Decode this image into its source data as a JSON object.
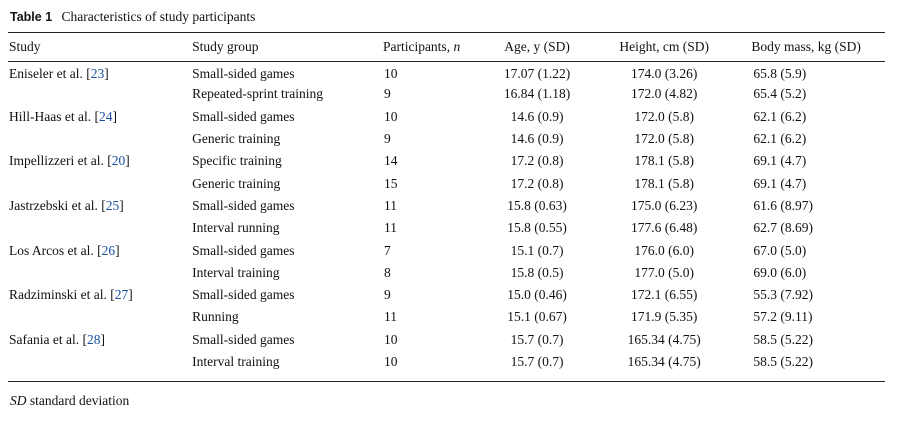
{
  "table": {
    "label": "Table 1",
    "caption": "Characteristics of study participants",
    "headers": {
      "study": "Study",
      "group": "Study group",
      "participants": "Participants, ",
      "participants_var": "n",
      "age": "Age, y (SD)",
      "height": "Height, cm (SD)",
      "mass": "Body mass, kg (SD)"
    },
    "rows": [
      {
        "study": "Eniseler et al. [",
        "ref": "23",
        "study_end": "]",
        "group": "Small-sided games",
        "n": "10",
        "age": "17.07 (1.22)",
        "height": "174.0 (3.26)",
        "mass": "65.8 (5.9)"
      },
      {
        "study": "",
        "ref": "",
        "study_end": "",
        "group": "Repeated-sprint training",
        "n": "9",
        "age": "16.84 (1.18)",
        "height": "172.0 (4.82)",
        "mass": "65.4 (5.2)"
      },
      {
        "study": "Hill-Haas et al. [",
        "ref": "24",
        "study_end": "]",
        "group": "Small-sided games",
        "n": "10",
        "age": "14.6 (0.9)",
        "height": "172.0 (5.8)",
        "mass": "62.1 (6.2)"
      },
      {
        "study": "",
        "ref": "",
        "study_end": "",
        "group": "Generic training",
        "n": "9",
        "age": "14.6 (0.9)",
        "height": "172.0 (5.8)",
        "mass": "62.1 (6.2)"
      },
      {
        "study": "Impellizzeri et al. [",
        "ref": "20",
        "study_end": "]",
        "group": "Specific training",
        "n": "14",
        "age": "17.2 (0.8)",
        "height": "178.1 (5.8)",
        "mass": "69.1 (4.7)"
      },
      {
        "study": "",
        "ref": "",
        "study_end": "",
        "group": "Generic training",
        "n": "15",
        "age": "17.2 (0.8)",
        "height": "178.1 (5.8)",
        "mass": "69.1 (4.7)"
      },
      {
        "study": "Jastrzebski et al. [",
        "ref": "25",
        "study_end": "]",
        "group": "Small-sided games",
        "n": "11",
        "age": "15.8 (0.63)",
        "height": "175.0 (6.23)",
        "mass": "61.6 (8.97)"
      },
      {
        "study": "",
        "ref": "",
        "study_end": "",
        "group": "Interval running",
        "n": "11",
        "age": "15.8 (0.55)",
        "height": "177.6 (6.48)",
        "mass": "62.7 (8.69)"
      },
      {
        "study": "Los Arcos et al. [",
        "ref": "26",
        "study_end": "]",
        "group": "Small-sided games",
        "n": "7",
        "age": "15.1 (0.7)",
        "height": "176.0 (6.0)",
        "mass": "67.0 (5.0)"
      },
      {
        "study": "",
        "ref": "",
        "study_end": "",
        "group": "Interval training",
        "n": "8",
        "age": "15.8 (0.5)",
        "height": "177.0 (5.0)",
        "mass": "69.0 (6.0)"
      },
      {
        "study": "Radziminski et al. [",
        "ref": "27",
        "study_end": "]",
        "group": "Small-sided games",
        "n": "9",
        "age": "15.0 (0.46)",
        "height": "172.1 (6.55)",
        "mass": "55.3 (7.92)"
      },
      {
        "study": "",
        "ref": "",
        "study_end": "",
        "group": "Running",
        "n": "11",
        "age": "15.1 (0.67)",
        "height": "171.9 (5.35)",
        "mass": "57.2 (9.11)"
      },
      {
        "study": "Safania et al. [",
        "ref": "28",
        "study_end": "]",
        "group": "Small-sided games",
        "n": "10",
        "age": "15.7 (0.7)",
        "height": "165.34 (4.75)",
        "mass": "58.5 (5.22)"
      },
      {
        "study": "",
        "ref": "",
        "study_end": "",
        "group": "Interval training",
        "n": "10",
        "age": "15.7 (0.7)",
        "height": "165.34 (4.75)",
        "mass": "58.5 (5.22)"
      }
    ],
    "footnote": {
      "abbr": "SD",
      "text": " standard deviation"
    }
  },
  "colors": {
    "text": "#111111",
    "link": "#1a4fa3",
    "rule": "#222222"
  }
}
